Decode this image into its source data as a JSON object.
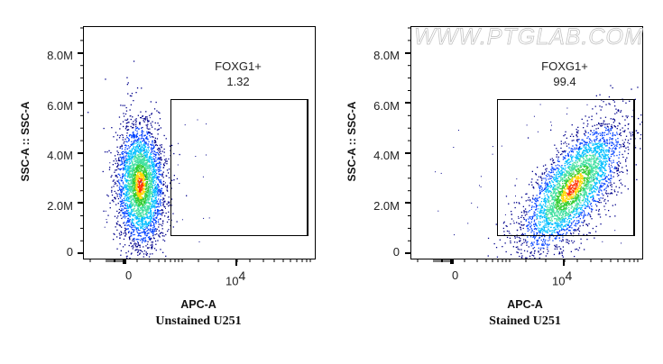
{
  "chart_data": [
    {
      "type": "scatter",
      "subtype": "flow-cytometry-density-dot-plot",
      "title": "Unstained U251",
      "xlabel": "APC-A",
      "ylabel": "SSC-A :: SSC-A",
      "x_scale": "biexponential",
      "x_tick_labels": [
        "0",
        "10^4"
      ],
      "y_tick_labels": [
        "0",
        "2.0M",
        "4.0M",
        "6.0M",
        "8.0M"
      ],
      "ylim": [
        0,
        9000000
      ],
      "gate": {
        "name": "FOXG1+",
        "percent": 1.32
      },
      "population": {
        "x_center_approx": "~0 to 10^3",
        "y_center": 2600000,
        "y_range": [
          1200000,
          5400000
        ]
      }
    },
    {
      "type": "scatter",
      "subtype": "flow-cytometry-density-dot-plot",
      "title": "Stained U251",
      "xlabel": "APC-A",
      "ylabel": "SSC-A :: SSC-A",
      "x_scale": "biexponential",
      "x_tick_labels": [
        "0",
        "10^4"
      ],
      "y_tick_labels": [
        "0",
        "2.0M",
        "4.0M",
        "6.0M",
        "8.0M"
      ],
      "ylim": [
        0,
        9000000
      ],
      "gate": {
        "name": "FOXG1+",
        "percent": 99.4
      },
      "population": {
        "x_center_approx": "~10^4",
        "y_center": 2800000,
        "y_range": [
          1200000,
          5400000
        ]
      }
    }
  ],
  "watermark": "WWW.PTGLAB.COM",
  "panels": [
    {
      "ylabel": "SSC-A :: SSC-A",
      "yticks": [
        "8.0M",
        "6.0M",
        "4.0M",
        "2.0M",
        "0"
      ],
      "xticks": {
        "zero": "0",
        "ten": "10",
        "exp": "4"
      },
      "xlabel": "APC-A",
      "caption": "Unstained U251",
      "gate_name": "FOXG1+",
      "gate_value": "1.32"
    },
    {
      "ylabel": "SSC-A :: SSC-A",
      "yticks": [
        "8.0M",
        "6.0M",
        "4.0M",
        "2.0M",
        "0"
      ],
      "xticks": {
        "zero": "0",
        "ten": "10",
        "exp": "4"
      },
      "xlabel": "APC-A",
      "caption": "Stained U251",
      "gate_name": "FOXG1+",
      "gate_value": "99.4"
    }
  ],
  "colors": {
    "density_low": "#00008b",
    "density_mid1": "#00bfff",
    "density_mid2": "#32cd32",
    "density_high": "#ffd700",
    "density_peak": "#ff3300"
  }
}
